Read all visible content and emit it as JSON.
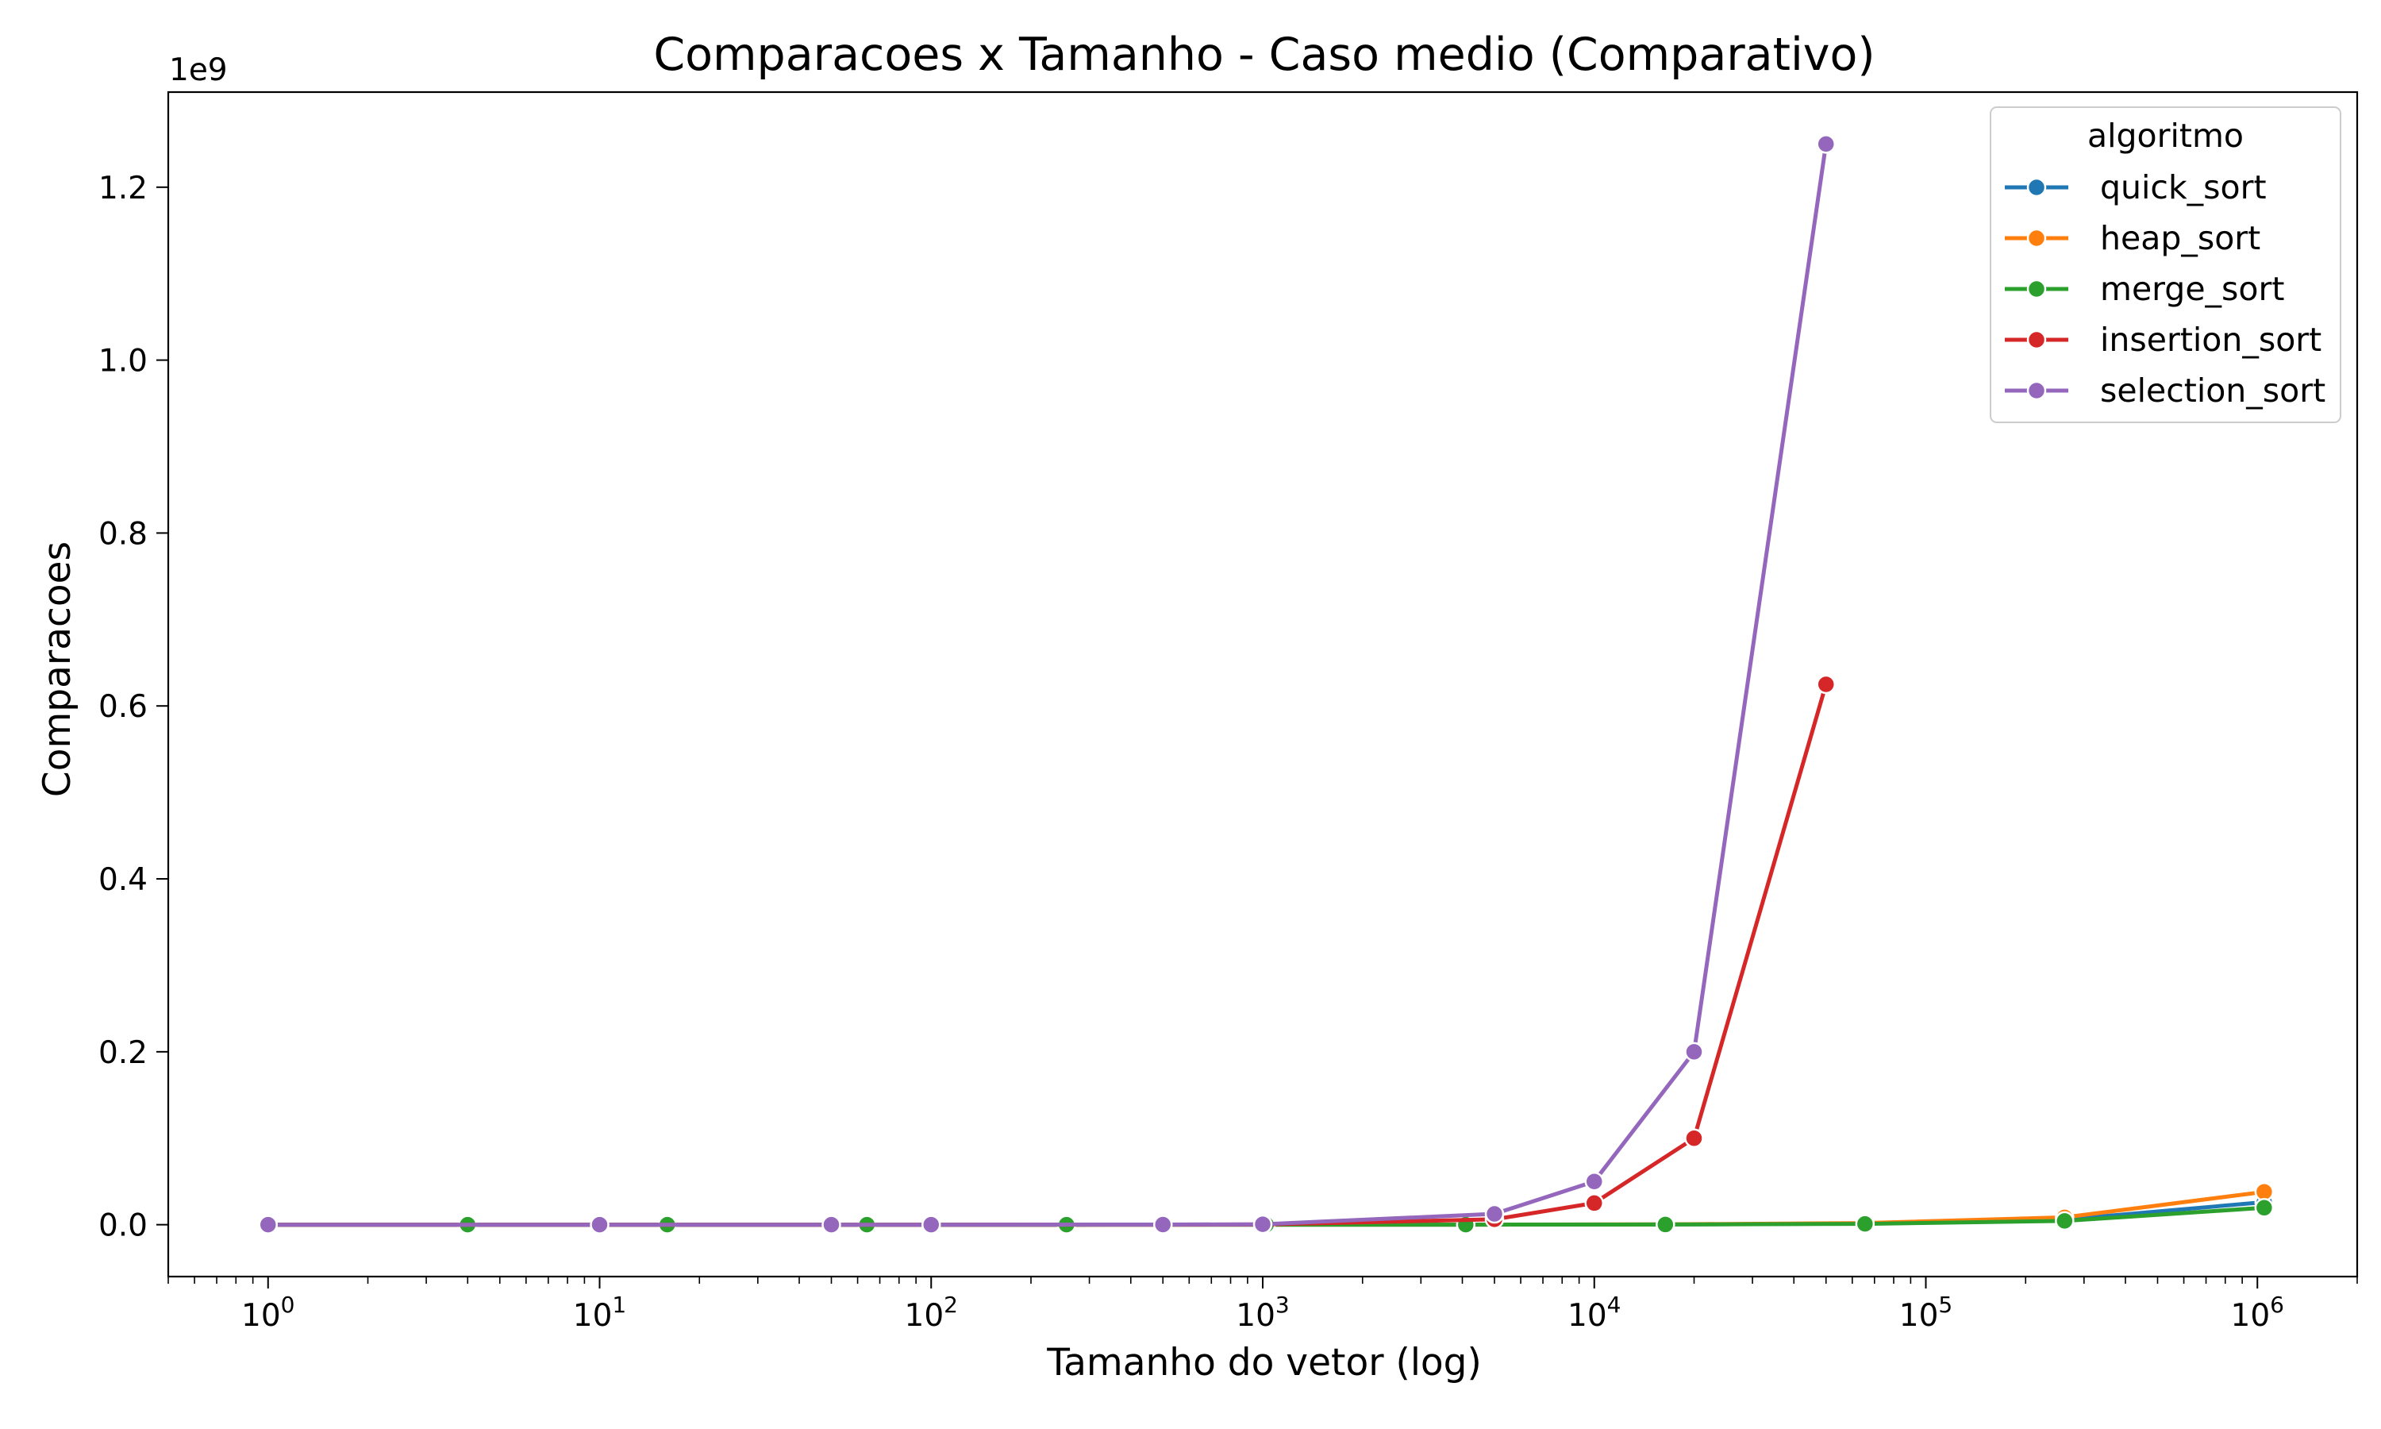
{
  "chart_data": {
    "type": "line",
    "title": "Comparacoes x Tamanho - Caso medio (Comparativo)",
    "xlabel": "Tamanho do vetor (log)",
    "ylabel": "Comparacoes",
    "x_scale": "log",
    "xlim": [
      0.5,
      2000000
    ],
    "ylim": [
      -60000000,
      1310000000
    ],
    "y_offset_label": "1e9",
    "x_ticks": [
      {
        "value": 1,
        "base": "10",
        "exp": "0"
      },
      {
        "value": 10,
        "base": "10",
        "exp": "1"
      },
      {
        "value": 100,
        "base": "10",
        "exp": "2"
      },
      {
        "value": 1000,
        "base": "10",
        "exp": "3"
      },
      {
        "value": 10000,
        "base": "10",
        "exp": "4"
      },
      {
        "value": 100000,
        "base": "10",
        "exp": "5"
      },
      {
        "value": 1000000,
        "base": "10",
        "exp": "6"
      }
    ],
    "y_ticks": [
      {
        "value": 0,
        "label": "0.0"
      },
      {
        "value": 200000000,
        "label": "0.2"
      },
      {
        "value": 400000000,
        "label": "0.4"
      },
      {
        "value": 600000000,
        "label": "0.6"
      },
      {
        "value": 800000000,
        "label": "0.8"
      },
      {
        "value": 1000000000,
        "label": "1.0"
      },
      {
        "value": 1200000000,
        "label": "1.2"
      }
    ],
    "legend": {
      "title": "algoritmo",
      "placement": "top-right"
    },
    "grid": false,
    "series": [
      {
        "name": "quick_sort",
        "color": "#1f77b4",
        "x": [
          1,
          4,
          16,
          64,
          256,
          1024,
          4096,
          16384,
          65536,
          262144,
          1048576
        ],
        "y": [
          0,
          5,
          50,
          400,
          2300,
          12000,
          60000,
          280000,
          1300000,
          5900000,
          26000000
        ]
      },
      {
        "name": "heap_sort",
        "color": "#ff7f0e",
        "x": [
          1,
          4,
          16,
          64,
          256,
          1024,
          4096,
          16384,
          65536,
          262144,
          1048576
        ],
        "y": [
          0,
          8,
          80,
          650,
          3600,
          18000,
          87000,
          410000,
          1900000,
          8500000,
          38000000
        ]
      },
      {
        "name": "merge_sort",
        "color": "#2ca02c",
        "x": [
          1,
          4,
          16,
          64,
          256,
          1024,
          4096,
          16384,
          65536,
          262144,
          1048576
        ],
        "y": [
          0,
          5,
          48,
          320,
          1800,
          9000,
          44000,
          210000,
          970000,
          4400000,
          19600000
        ]
      },
      {
        "name": "insertion_sort",
        "color": "#d62728",
        "x": [
          1,
          10,
          50,
          100,
          500,
          1000,
          5000,
          10000,
          20000,
          50000
        ],
        "y": [
          0,
          25,
          625,
          2500,
          62500,
          250000,
          6250000,
          25000000,
          100000000,
          625000000
        ]
      },
      {
        "name": "selection_sort",
        "color": "#9467bd",
        "x": [
          1,
          10,
          50,
          100,
          500,
          1000,
          5000,
          10000,
          20000,
          50000
        ],
        "y": [
          0,
          45,
          1225,
          4950,
          124750,
          499500,
          12497500,
          49995000,
          199990000,
          1249975000
        ]
      }
    ]
  }
}
